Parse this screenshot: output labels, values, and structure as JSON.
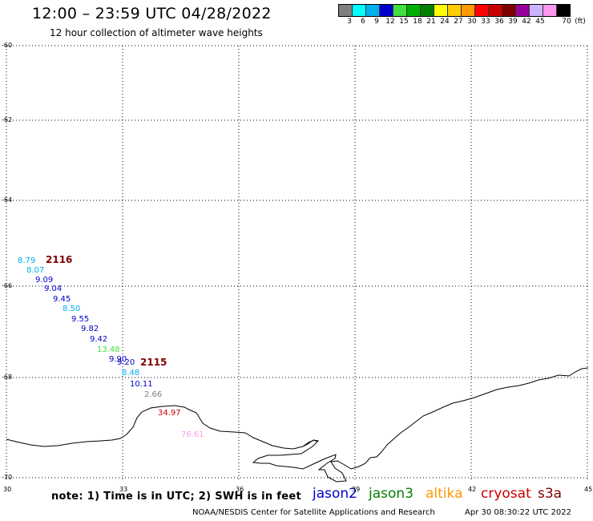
{
  "header": {
    "title": "12:00 – 23:59 UTC 04/28/2022",
    "subtitle": "12 hour collection of altimeter wave heights"
  },
  "colorbar": {
    "colors": [
      "#808080",
      "#00ffff",
      "#00b0f0",
      "#0000cc",
      "#40e040",
      "#00b000",
      "#008000",
      "#ffff00",
      "#ffcc00",
      "#ff9900",
      "#ff0000",
      "#cc0000",
      "#800000",
      "#990099",
      "#ccb3ff",
      "#ff99ee",
      "#000000"
    ],
    "labels": [
      "3",
      "6",
      "9",
      "12",
      "15",
      "18",
      "21",
      "24",
      "27",
      "30",
      "33",
      "36",
      "39",
      "42",
      "45",
      "70",
      "(ft)"
    ]
  },
  "axes": {
    "lat_labels": [
      "-60",
      "-62",
      "-64",
      "-66",
      "-68",
      "-70"
    ],
    "lon_labels": [
      "30",
      "33",
      "36",
      "39",
      "42",
      "45"
    ]
  },
  "tracks": [
    {
      "name": "2116",
      "color": "#800000"
    },
    {
      "name": "2115",
      "color": "#800000"
    }
  ],
  "observations": [
    {
      "value": "8.79",
      "color": "#00b0f0"
    },
    {
      "value": "8.07",
      "color": "#00b0f0"
    },
    {
      "value": "9.09",
      "color": "#0000cc"
    },
    {
      "value": "9.04",
      "color": "#0000cc"
    },
    {
      "value": "9.45",
      "color": "#0000cc"
    },
    {
      "value": "8.50",
      "color": "#00b0f0"
    },
    {
      "value": "9.55",
      "color": "#0000cc"
    },
    {
      "value": "9.82",
      "color": "#0000cc"
    },
    {
      "value": "9.42",
      "color": "#0000cc"
    },
    {
      "value": "13.48",
      "color": "#40e040"
    },
    {
      "value": "9.90",
      "color": "#0000cc"
    },
    {
      "value": "9.20",
      "color": "#0000cc"
    },
    {
      "value": "8.48",
      "color": "#00b0f0"
    },
    {
      "value": "10.11",
      "color": "#0000cc"
    },
    {
      "value": "2.66",
      "color": "#808080"
    },
    {
      "value": "34.97",
      "color": "#cc0000"
    },
    {
      "value": "76.61",
      "color": "#ff99ee"
    }
  ],
  "footer": {
    "note": "note: 1) Time is in UTC; 2) SWH is in feet",
    "credit": "NOAA/NESDIS Center for Satellite Applications and Research",
    "timestamp": "Apr 30 08:30:22 UTC 2022"
  },
  "legend": [
    {
      "label": "jason2",
      "color": "#0000cc"
    },
    {
      "label": "jason3",
      "color": "#008000"
    },
    {
      "label": "altika",
      "color": "#ff9900"
    },
    {
      "label": "cryosat",
      "color": "#cc0000"
    },
    {
      "label": "s3a",
      "color": "#800000"
    }
  ]
}
